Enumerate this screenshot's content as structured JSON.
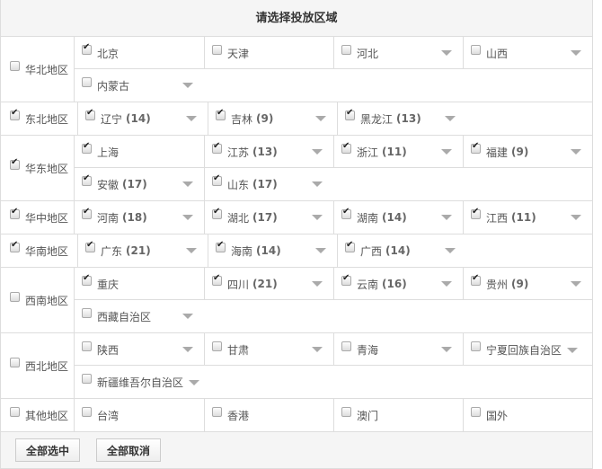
{
  "title": "请选择投放区域",
  "regions": [
    {
      "label": "华北地区",
      "checked": false,
      "rows": [
        [
          {
            "name": "北京",
            "checked": true,
            "arrow": false
          },
          {
            "name": "天津",
            "checked": false,
            "arrow": false
          },
          {
            "name": "河北",
            "checked": false,
            "arrow": true
          },
          {
            "name": "山西",
            "checked": false,
            "arrow": true
          }
        ],
        [
          {
            "name": "内蒙古",
            "checked": false,
            "arrow": true
          }
        ]
      ]
    },
    {
      "label": "东北地区",
      "checked": true,
      "rows": [
        [
          {
            "name": "辽宁",
            "count": "(14)",
            "checked": true,
            "arrow": true
          },
          {
            "name": "吉林",
            "count": "(9)",
            "checked": true,
            "arrow": true
          },
          {
            "name": "黑龙江",
            "count": "(13)",
            "checked": true,
            "arrow": true
          }
        ]
      ]
    },
    {
      "label": "华东地区",
      "checked": true,
      "rows": [
        [
          {
            "name": "上海",
            "checked": true,
            "arrow": false
          },
          {
            "name": "江苏",
            "count": "(13)",
            "checked": true,
            "arrow": true
          },
          {
            "name": "浙江",
            "count": "(11)",
            "checked": true,
            "arrow": true
          },
          {
            "name": "福建",
            "count": "(9)",
            "checked": true,
            "arrow": true
          }
        ],
        [
          {
            "name": "安徽",
            "count": "(17)",
            "checked": true,
            "arrow": true
          },
          {
            "name": "山东",
            "count": "(17)",
            "checked": true,
            "arrow": true
          }
        ]
      ]
    },
    {
      "label": "华中地区",
      "checked": true,
      "rows": [
        [
          {
            "name": "河南",
            "count": "(18)",
            "checked": true,
            "arrow": true
          },
          {
            "name": "湖北",
            "count": "(17)",
            "checked": true,
            "arrow": true
          },
          {
            "name": "湖南",
            "count": "(14)",
            "checked": true,
            "arrow": true
          },
          {
            "name": "江西",
            "count": "(11)",
            "checked": true,
            "arrow": true
          }
        ]
      ]
    },
    {
      "label": "华南地区",
      "checked": true,
      "rows": [
        [
          {
            "name": "广东",
            "count": "(21)",
            "checked": true,
            "arrow": true
          },
          {
            "name": "海南",
            "count": "(14)",
            "checked": true,
            "arrow": true
          },
          {
            "name": "广西",
            "count": "(14)",
            "checked": true,
            "arrow": true
          }
        ]
      ]
    },
    {
      "label": "西南地区",
      "checked": false,
      "rows": [
        [
          {
            "name": "重庆",
            "checked": true,
            "arrow": false
          },
          {
            "name": "四川",
            "count": "(21)",
            "checked": true,
            "arrow": true
          },
          {
            "name": "云南",
            "count": "(16)",
            "checked": true,
            "arrow": true
          },
          {
            "name": "贵州",
            "count": "(9)",
            "checked": true,
            "arrow": true
          }
        ],
        [
          {
            "name": "西藏自治区",
            "checked": false,
            "arrow": true
          }
        ]
      ]
    },
    {
      "label": "西北地区",
      "checked": false,
      "rows": [
        [
          {
            "name": "陕西",
            "checked": false,
            "arrow": true
          },
          {
            "name": "甘肃",
            "checked": false,
            "arrow": true
          },
          {
            "name": "青海",
            "checked": false,
            "arrow": true
          },
          {
            "name": "宁夏回族自治区",
            "checked": false,
            "arrow": true,
            "inline": true
          }
        ],
        [
          {
            "name": "新疆维吾尔自治区",
            "checked": false,
            "arrow": true,
            "inline": true
          }
        ]
      ]
    },
    {
      "label": "其他地区",
      "checked": false,
      "rows": [
        [
          {
            "name": "台湾",
            "checked": false,
            "arrow": false
          },
          {
            "name": "香港",
            "checked": false,
            "arrow": false
          },
          {
            "name": "澳门",
            "checked": false,
            "arrow": false
          },
          {
            "name": "国外",
            "checked": false,
            "arrow": false
          }
        ]
      ]
    }
  ],
  "buttons": {
    "select_all": "全部选中",
    "deselect_all": "全部取消"
  }
}
